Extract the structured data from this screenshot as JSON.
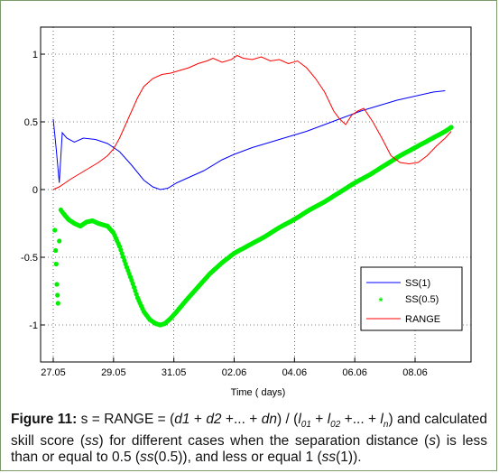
{
  "caption": {
    "label": "Figure 11:",
    "s1": " s = RANGE = (",
    "d1": "d1",
    "plus1": " + ",
    "d2": "d2",
    "plus2": " +... + ",
    "dn": "dn",
    "mid": ") / (",
    "l": "l",
    "sub01": "01",
    "sub02": "02",
    "subn": "n",
    "plus3": " + ",
    "plus4": " +... + ",
    "end1": ") and calculated skill score (",
    "ss": "ss",
    "end2": ") for different cases when the separation distance (",
    "s": "s",
    "end3": ") is less than or equal to 0.5 (",
    "ss05": "ss",
    "end4": "(0.5)), and less or equal 1 (",
    "ss1": "ss",
    "end5": "(1))."
  },
  "chart_data": {
    "type": "line",
    "xlabel": "Time ( days)",
    "ylabel": "",
    "xlim": [
      0,
      12.8
    ],
    "ylim": [
      -1.22,
      1.22
    ],
    "x_ticks": [
      {
        "pos": 0,
        "label": "27.05"
      },
      {
        "pos": 2,
        "label": "29.05"
      },
      {
        "pos": 4,
        "label": "31.05"
      },
      {
        "pos": 6,
        "label": "02.06"
      },
      {
        "pos": 8,
        "label": "04.06"
      },
      {
        "pos": 10,
        "label": "06.06"
      },
      {
        "pos": 12,
        "label": "08.06"
      }
    ],
    "y_ticks": [
      {
        "pos": 1,
        "label": "1"
      },
      {
        "pos": 0.5,
        "label": "0.5"
      },
      {
        "pos": 0,
        "label": "0"
      },
      {
        "pos": -0.5,
        "label": "-0.5"
      },
      {
        "pos": -1,
        "label": "-1"
      }
    ],
    "grid": "dotted",
    "legend_position": "bottom-right",
    "series": [
      {
        "name": "SS(1)",
        "color": "#0000ff",
        "style": "line",
        "points": [
          [
            0,
            0.52
          ],
          [
            0.1,
            0.3
          ],
          [
            0.2,
            0.05
          ],
          [
            0.3,
            0.42
          ],
          [
            0.45,
            0.38
          ],
          [
            0.7,
            0.35
          ],
          [
            1.0,
            0.38
          ],
          [
            1.4,
            0.37
          ],
          [
            1.8,
            0.34
          ],
          [
            2.2,
            0.28
          ],
          [
            2.6,
            0.18
          ],
          [
            3.0,
            0.07
          ],
          [
            3.3,
            0.02
          ],
          [
            3.55,
            0.0
          ],
          [
            3.8,
            0.01
          ],
          [
            4.1,
            0.05
          ],
          [
            4.6,
            0.1
          ],
          [
            5.0,
            0.14
          ],
          [
            5.6,
            0.22
          ],
          [
            6.0,
            0.26
          ],
          [
            6.6,
            0.31
          ],
          [
            7.2,
            0.35
          ],
          [
            7.8,
            0.39
          ],
          [
            8.4,
            0.43
          ],
          [
            9.0,
            0.48
          ],
          [
            9.6,
            0.53
          ],
          [
            10.2,
            0.58
          ],
          [
            10.8,
            0.62
          ],
          [
            11.4,
            0.66
          ],
          [
            12.0,
            0.69
          ],
          [
            12.6,
            0.72
          ],
          [
            13.0,
            0.73
          ]
        ]
      },
      {
        "name": "SS(0.5)",
        "color": "#00ee00",
        "style": "markers",
        "points": [
          [
            0.05,
            -0.3
          ],
          [
            0.08,
            -0.45
          ],
          [
            0.1,
            -0.55
          ],
          [
            0.12,
            -0.7
          ],
          [
            0.14,
            -0.78
          ],
          [
            0.16,
            -0.84
          ],
          [
            0.2,
            -0.38
          ],
          [
            0.25,
            -0.15
          ],
          [
            0.35,
            -0.18
          ],
          [
            0.5,
            -0.22
          ],
          [
            0.7,
            -0.25
          ],
          [
            0.9,
            -0.27
          ],
          [
            1.1,
            -0.24
          ],
          [
            1.3,
            -0.23
          ],
          [
            1.5,
            -0.25
          ],
          [
            1.8,
            -0.27
          ],
          [
            2.0,
            -0.32
          ],
          [
            2.2,
            -0.42
          ],
          [
            2.4,
            -0.55
          ],
          [
            2.6,
            -0.67
          ],
          [
            2.8,
            -0.8
          ],
          [
            3.0,
            -0.9
          ],
          [
            3.2,
            -0.96
          ],
          [
            3.4,
            -0.99
          ],
          [
            3.55,
            -1.0
          ],
          [
            3.7,
            -0.99
          ],
          [
            3.9,
            -0.95
          ],
          [
            4.1,
            -0.9
          ],
          [
            4.4,
            -0.82
          ],
          [
            4.8,
            -0.72
          ],
          [
            5.2,
            -0.62
          ],
          [
            5.6,
            -0.54
          ],
          [
            6.0,
            -0.47
          ],
          [
            6.5,
            -0.41
          ],
          [
            7.0,
            -0.35
          ],
          [
            7.5,
            -0.28
          ],
          [
            8.0,
            -0.22
          ],
          [
            8.5,
            -0.15
          ],
          [
            9.0,
            -0.09
          ],
          [
            9.5,
            -0.02
          ],
          [
            10.0,
            0.05
          ],
          [
            10.5,
            0.11
          ],
          [
            11.0,
            0.18
          ],
          [
            11.5,
            0.25
          ],
          [
            12.0,
            0.31
          ],
          [
            12.5,
            0.37
          ],
          [
            13.0,
            0.43
          ],
          [
            13.2,
            0.46
          ]
        ]
      },
      {
        "name": "RANGE",
        "color": "#ff0000",
        "style": "line",
        "points": [
          [
            0,
            0.0
          ],
          [
            0.2,
            0.02
          ],
          [
            0.4,
            0.05
          ],
          [
            0.6,
            0.08
          ],
          [
            0.9,
            0.12
          ],
          [
            1.2,
            0.16
          ],
          [
            1.5,
            0.2
          ],
          [
            1.8,
            0.25
          ],
          [
            2.0,
            0.3
          ],
          [
            2.2,
            0.38
          ],
          [
            2.4,
            0.48
          ],
          [
            2.6,
            0.58
          ],
          [
            2.8,
            0.68
          ],
          [
            3.0,
            0.76
          ],
          [
            3.3,
            0.82
          ],
          [
            3.6,
            0.85
          ],
          [
            3.9,
            0.86
          ],
          [
            4.2,
            0.88
          ],
          [
            4.5,
            0.9
          ],
          [
            4.8,
            0.93
          ],
          [
            5.1,
            0.95
          ],
          [
            5.3,
            0.97
          ],
          [
            5.6,
            0.94
          ],
          [
            5.9,
            0.96
          ],
          [
            6.1,
            0.99
          ],
          [
            6.3,
            0.97
          ],
          [
            6.6,
            0.96
          ],
          [
            6.9,
            0.98
          ],
          [
            7.2,
            0.95
          ],
          [
            7.5,
            0.96
          ],
          [
            7.8,
            0.93
          ],
          [
            8.1,
            0.95
          ],
          [
            8.4,
            0.9
          ],
          [
            8.7,
            0.82
          ],
          [
            9.0,
            0.72
          ],
          [
            9.3,
            0.58
          ],
          [
            9.5,
            0.52
          ],
          [
            9.7,
            0.48
          ],
          [
            9.9,
            0.55
          ],
          [
            10.1,
            0.58
          ],
          [
            10.3,
            0.6
          ],
          [
            10.6,
            0.5
          ],
          [
            10.9,
            0.38
          ],
          [
            11.2,
            0.25
          ],
          [
            11.5,
            0.2
          ],
          [
            11.8,
            0.19
          ],
          [
            12.1,
            0.2
          ],
          [
            12.4,
            0.25
          ],
          [
            12.7,
            0.32
          ],
          [
            13.0,
            0.38
          ],
          [
            13.2,
            0.43
          ]
        ]
      }
    ]
  }
}
